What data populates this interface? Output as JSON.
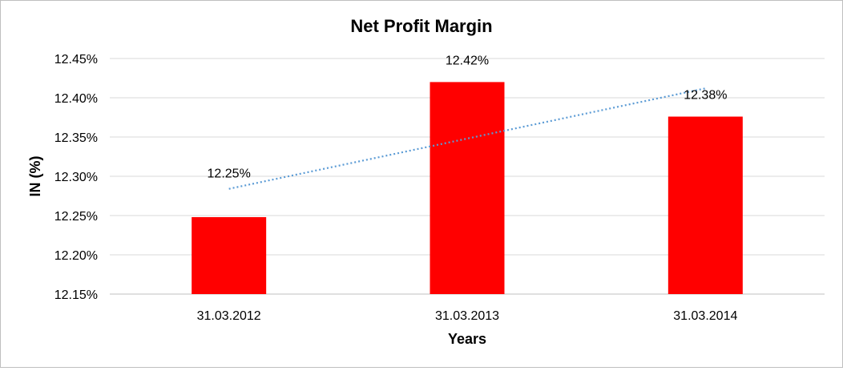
{
  "chart_data": {
    "type": "bar",
    "title": "Net Profit Margin",
    "xlabel": "Years",
    "ylabel": "IN (%)",
    "categories": [
      "31.03.2012",
      "31.03.2013",
      "31.03.2014"
    ],
    "series": [
      {
        "values": [
          12.248,
          12.42,
          12.376
        ],
        "color": "#ff0000"
      }
    ],
    "data_labels": [
      "12.25%",
      "12.42%",
      "12.38%"
    ],
    "ylim": [
      12.15,
      12.45
    ],
    "yticks": [
      12.15,
      12.2,
      12.25,
      12.3,
      12.35,
      12.4,
      12.45
    ],
    "ytick_labels": [
      "12.15%",
      "12.20%",
      "12.25%",
      "12.30%",
      "12.35%",
      "12.40%",
      "12.45%"
    ],
    "trendline": {
      "type": "linear",
      "style": "dotted",
      "color": "#5b9bd5"
    },
    "grid": true,
    "legend": "none"
  }
}
